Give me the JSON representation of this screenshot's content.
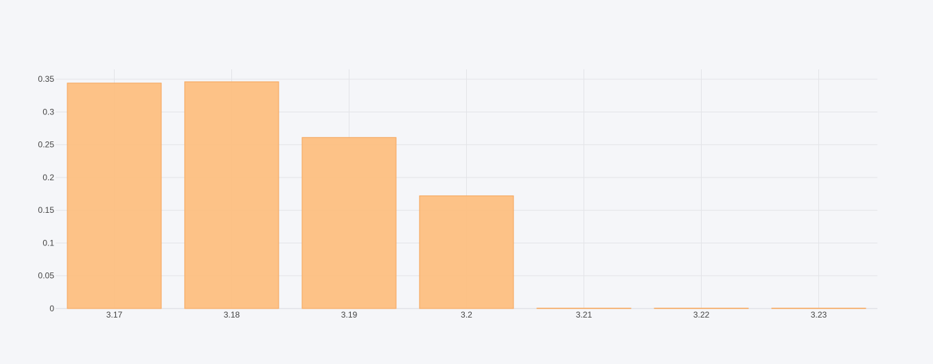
{
  "chart_data": {
    "type": "bar",
    "title": "",
    "xlabel": "",
    "ylabel": "",
    "categories": [
      "3.17",
      "3.18",
      "3.19",
      "3.2",
      "3.21",
      "3.22",
      "3.23"
    ],
    "values": [
      0.344,
      0.346,
      0.261,
      0.172,
      0.0005,
      0.0005,
      0.0005
    ],
    "ylim": [
      0,
      0.365
    ],
    "y_ticks": [
      0,
      0.05,
      0.1,
      0.15,
      0.2,
      0.25,
      0.3,
      0.35
    ],
    "y_tick_labels": [
      "0",
      "0.05",
      "0.1",
      "0.15",
      "0.2",
      "0.25",
      "0.3",
      "0.35"
    ],
    "grid": true,
    "legend": "none",
    "colors": {
      "bar_fill": "#fdbf81",
      "bar_stroke": "#f5a55a",
      "grid": "#e3e4e8",
      "background": "#f5f6f9",
      "text": "#444444"
    }
  }
}
